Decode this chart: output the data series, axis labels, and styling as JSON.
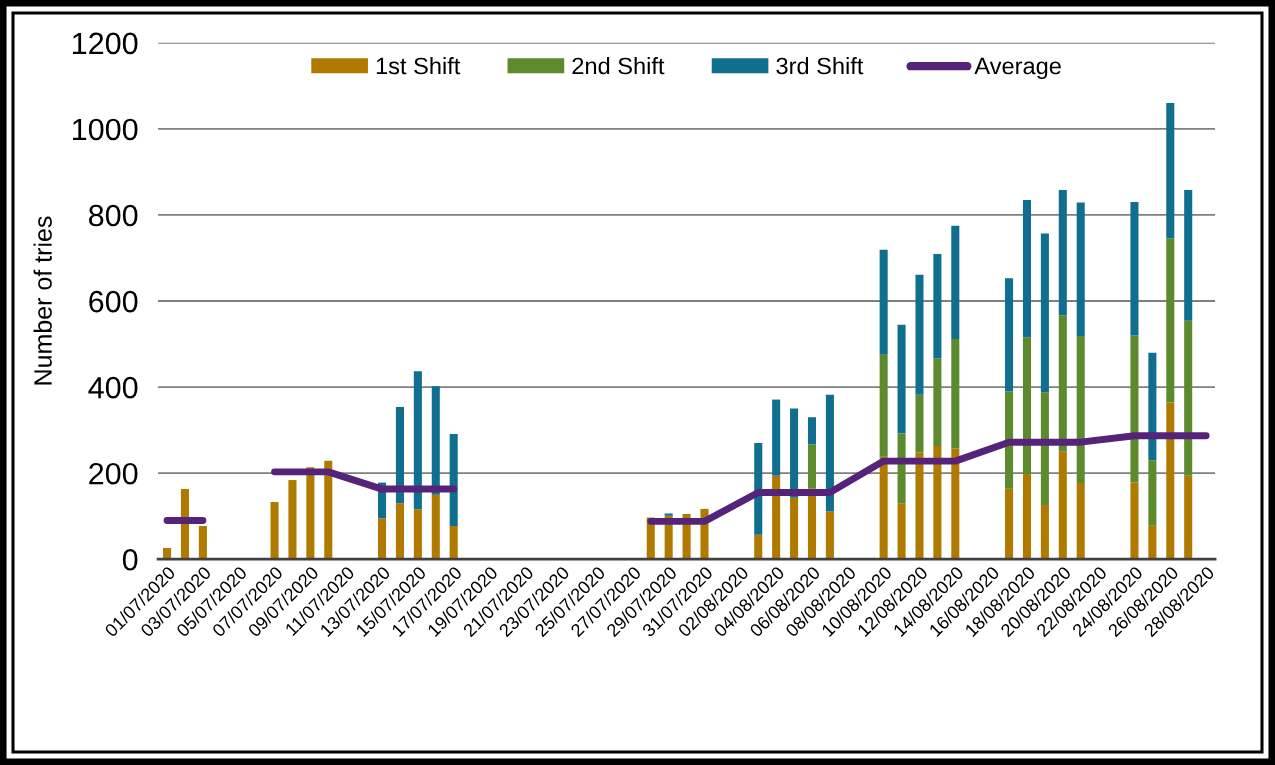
{
  "chart_data": {
    "type": "bar",
    "stacked": true,
    "ylabel": "Number of tries",
    "x": [
      "2020-07-01",
      "2020-07-02",
      "2020-07-03",
      "2020-07-07",
      "2020-07-08",
      "2020-07-09",
      "2020-07-10",
      "2020-07-13",
      "2020-07-14",
      "2020-07-15",
      "2020-07-16",
      "2020-07-17",
      "2020-07-28",
      "2020-07-29",
      "2020-07-30",
      "2020-07-31",
      "2020-08-03",
      "2020-08-04",
      "2020-08-05",
      "2020-08-06",
      "2020-08-07",
      "2020-08-10",
      "2020-08-11",
      "2020-08-12",
      "2020-08-13",
      "2020-08-14",
      "2020-08-17",
      "2020-08-18",
      "2020-08-19",
      "2020-08-20",
      "2020-08-21",
      "2020-08-24",
      "2020-08-25",
      "2020-08-26",
      "2020-08-27"
    ],
    "series": [
      {
        "name": "1st Shift",
        "color": "#b07a00",
        "values": [
          26,
          163,
          77,
          133,
          184,
          214,
          229,
          95,
          130,
          116,
          150,
          77,
          97,
          101,
          105,
          117,
          57,
          194,
          143,
          165,
          111,
          238,
          129,
          248,
          263,
          257,
          164,
          198,
          126,
          250,
          177,
          178,
          78,
          364,
          194
        ]
      },
      {
        "name": "2nd Shift",
        "color": "#5e8a2e",
        "values": [
          null,
          null,
          null,
          null,
          null,
          null,
          null,
          null,
          null,
          null,
          null,
          null,
          null,
          null,
          null,
          null,
          null,
          null,
          null,
          102,
          null,
          237,
          163,
          134,
          204,
          255,
          226,
          318,
          262,
          317,
          342,
          342,
          152,
          382,
          360
        ]
      },
      {
        "name": "3rd Shift",
        "color": "#106e8e",
        "values": [
          null,
          null,
          null,
          null,
          null,
          null,
          null,
          83,
          224,
          321,
          252,
          214,
          null,
          5,
          null,
          null,
          213,
          177,
          207,
          63,
          271,
          244,
          253,
          279,
          242,
          263,
          263,
          319,
          369,
          291,
          310,
          310,
          250,
          314,
          304
        ]
      },
      {
        "name": "Average",
        "type": "line",
        "color": "#55247a",
        "x": [
          "2020-07-01",
          "2020-07-03",
          "2020-07-05",
          "2020-07-07",
          "2020-07-10",
          "2020-07-13",
          "2020-07-17",
          "2020-07-22",
          "2020-07-28",
          "2020-07-31",
          "2020-08-03",
          "2020-08-07",
          "2020-08-10",
          "2020-08-14",
          "2020-08-17",
          "2020-08-21",
          "2020-08-24",
          "2020-08-28"
        ],
        "values": [
          90,
          90,
          null,
          203,
          203,
          163,
          163,
          null,
          88,
          88,
          155,
          155,
          228,
          228,
          272,
          272,
          287,
          287
        ]
      }
    ],
    "xlim": [
      "2020-06-30T12:00",
      "2020-08-28T12:00"
    ],
    "xticks": [
      {
        "value": "2020-07-01",
        "label": "01/07/2020"
      },
      {
        "value": "2020-07-03",
        "label": "03/07/2020"
      },
      {
        "value": "2020-07-05",
        "label": "05/07/2020"
      },
      {
        "value": "2020-07-07",
        "label": "07/07/2020"
      },
      {
        "value": "2020-07-09",
        "label": "09/07/2020"
      },
      {
        "value": "2020-07-11",
        "label": "11/07/2020"
      },
      {
        "value": "2020-07-13",
        "label": "13/07/2020"
      },
      {
        "value": "2020-07-15",
        "label": "15/07/2020"
      },
      {
        "value": "2020-07-17",
        "label": "17/07/2020"
      },
      {
        "value": "2020-07-19",
        "label": "19/07/2020"
      },
      {
        "value": "2020-07-21",
        "label": "21/07/2020"
      },
      {
        "value": "2020-07-23",
        "label": "23/07/2020"
      },
      {
        "value": "2020-07-25",
        "label": "25/07/2020"
      },
      {
        "value": "2020-07-27",
        "label": "27/07/2020"
      },
      {
        "value": "2020-07-29",
        "label": "29/07/2020"
      },
      {
        "value": "2020-07-31",
        "label": "31/07/2020"
      },
      {
        "value": "2020-08-02",
        "label": "02/08/2020"
      },
      {
        "value": "2020-08-04",
        "label": "04/08/2020"
      },
      {
        "value": "2020-08-06",
        "label": "06/08/2020"
      },
      {
        "value": "2020-08-08",
        "label": "08/08/2020"
      },
      {
        "value": "2020-08-10",
        "label": "10/08/2020"
      },
      {
        "value": "2020-08-12",
        "label": "12/08/2020"
      },
      {
        "value": "2020-08-14",
        "label": "14/08/2020"
      },
      {
        "value": "2020-08-16",
        "label": "16/08/2020"
      },
      {
        "value": "2020-08-18",
        "label": "18/08/2020"
      },
      {
        "value": "2020-08-20",
        "label": "20/08/2020"
      },
      {
        "value": "2020-08-22",
        "label": "22/08/2020"
      },
      {
        "value": "2020-08-24",
        "label": "24/08/2020"
      },
      {
        "value": "2020-08-26",
        "label": "26/08/2020"
      },
      {
        "value": "2020-08-28",
        "label": "28/08/2020"
      }
    ],
    "ylim": [
      0,
      1200
    ],
    "yticks": [
      0,
      200,
      400,
      600,
      800,
      1000,
      1200
    ],
    "grid": "y",
    "legend": "top"
  }
}
